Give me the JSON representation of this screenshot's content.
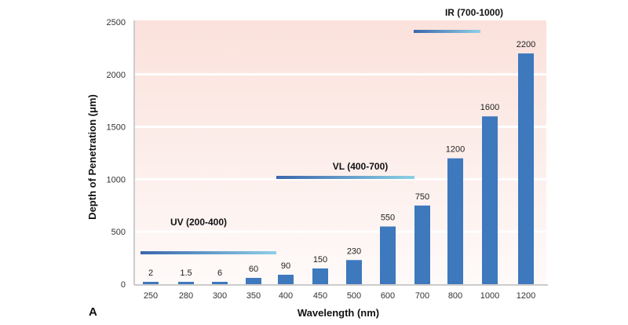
{
  "chart_data": {
    "type": "bar",
    "panel_label": "A",
    "xlabel": "Wavelength (nm)",
    "ylabel": "Depth of Penetration (μm)",
    "ylim": [
      0,
      2500
    ],
    "yticks": [
      "0",
      "500",
      "1000",
      "1500",
      "2000",
      "2500"
    ],
    "categories": [
      "250",
      "280",
      "300",
      "350",
      "400",
      "450",
      "500",
      "600",
      "700",
      "800",
      "1000",
      "1200"
    ],
    "values": [
      2,
      1.5,
      6,
      60,
      90,
      150,
      230,
      550,
      750,
      1200,
      1600,
      2200
    ],
    "data_labels": [
      "2",
      "1.5",
      "6",
      "60",
      "90",
      "150",
      "230",
      "550",
      "750",
      "1200",
      "1600",
      "2200"
    ],
    "grid": true,
    "annotations": [
      {
        "label": "UV (200-400)",
        "level": 300
      },
      {
        "label": "VL (400-700)",
        "level": 1000
      },
      {
        "label": "IR (700-1000)",
        "level": 2450
      }
    ],
    "colors": {
      "bar": "#3e78bd",
      "background_top": "#fbe1db",
      "background_bottom": "#fefaf9",
      "range_start": "#3b67ac",
      "range_end": "#8ecfe6"
    }
  }
}
